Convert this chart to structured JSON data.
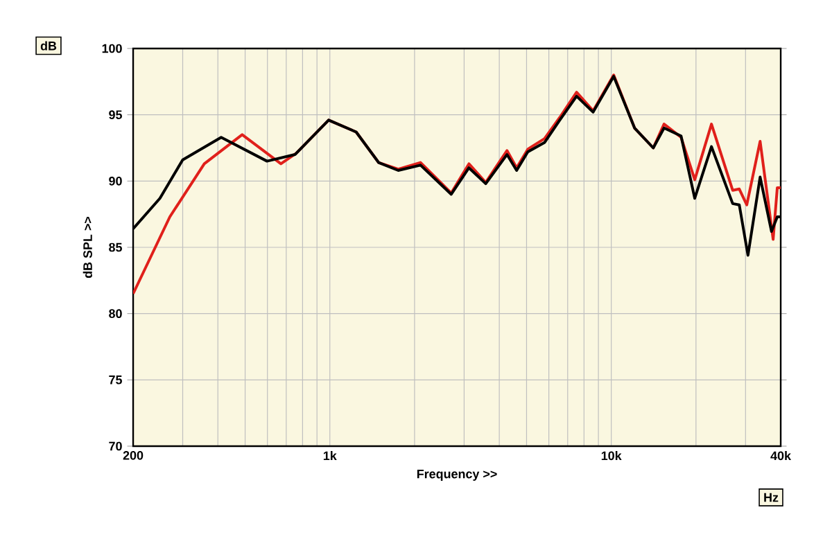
{
  "chart_data": {
    "type": "line",
    "xlabel": "Frequency >>",
    "ylabel": "dB SPL >>",
    "annotations": [
      "dB",
      "Hz"
    ],
    "log": "x",
    "grid": true,
    "marker": "none",
    "line_style": "solid",
    "xlim": [
      200,
      40000
    ],
    "ylim": [
      70,
      100
    ],
    "xticks": [
      {
        "value": 200,
        "label": "200"
      },
      {
        "value": 300,
        "label": null
      },
      {
        "value": 400,
        "label": null
      },
      {
        "value": 500,
        "label": null
      },
      {
        "value": 600,
        "label": null
      },
      {
        "value": 700,
        "label": null
      },
      {
        "value": 800,
        "label": null
      },
      {
        "value": 900,
        "label": null
      },
      {
        "value": 1000,
        "label": "1k"
      },
      {
        "value": 2000,
        "label": null
      },
      {
        "value": 3000,
        "label": null
      },
      {
        "value": 4000,
        "label": null
      },
      {
        "value": 5000,
        "label": null
      },
      {
        "value": 6000,
        "label": null
      },
      {
        "value": 7000,
        "label": null
      },
      {
        "value": 8000,
        "label": null
      },
      {
        "value": 9000,
        "label": null
      },
      {
        "value": 10000,
        "label": "10k"
      },
      {
        "value": 20000,
        "label": null
      },
      {
        "value": 30000,
        "label": null
      },
      {
        "value": 40000,
        "label": "40k"
      }
    ],
    "yticks": [
      70,
      75,
      80,
      85,
      90,
      95,
      100
    ],
    "series": [
      {
        "color": "#e0201b",
        "x": [
          200,
          270,
          358,
          488,
          670,
          760,
          990,
          1240,
          1490,
          1750,
          2100,
          2700,
          3120,
          3580,
          4260,
          4610,
          5050,
          5790,
          6560,
          7530,
          8620,
          10200,
          12100,
          14100,
          15400,
          17700,
          19800,
          22700,
          27000,
          28500,
          30300,
          33800,
          37600,
          38900,
          40000
        ],
        "values": [
          81.5,
          87.3,
          91.3,
          93.5,
          91.3,
          92.1,
          94.6,
          93.7,
          91.4,
          90.9,
          91.4,
          89.1,
          91.3,
          89.9,
          92.3,
          91.0,
          92.4,
          93.2,
          94.8,
          96.7,
          95.3,
          98.0,
          94.0,
          92.5,
          94.3,
          93.3,
          90.1,
          94.3,
          89.3,
          89.4,
          88.2,
          93.0,
          85.6,
          89.5,
          89.5
        ]
      },
      {
        "color": "#000000",
        "x": [
          200,
          249,
          300,
          411,
          598,
          752,
          990,
          1240,
          1490,
          1750,
          2100,
          2700,
          3120,
          3580,
          4260,
          4610,
          5050,
          5790,
          6560,
          7530,
          8620,
          10200,
          12100,
          14100,
          15400,
          17700,
          19800,
          22700,
          27000,
          28500,
          30600,
          33800,
          37100,
          38900,
          40000
        ],
        "values": [
          86.4,
          88.7,
          91.6,
          93.3,
          91.5,
          92.0,
          94.6,
          93.7,
          91.4,
          90.8,
          91.2,
          89.0,
          91.0,
          89.8,
          92.0,
          90.8,
          92.2,
          92.9,
          94.6,
          96.4,
          95.2,
          97.9,
          94.0,
          92.5,
          94.0,
          93.4,
          88.7,
          92.6,
          88.3,
          88.2,
          84.4,
          90.3,
          86.2,
          87.3,
          87.3
        ]
      }
    ]
  }
}
